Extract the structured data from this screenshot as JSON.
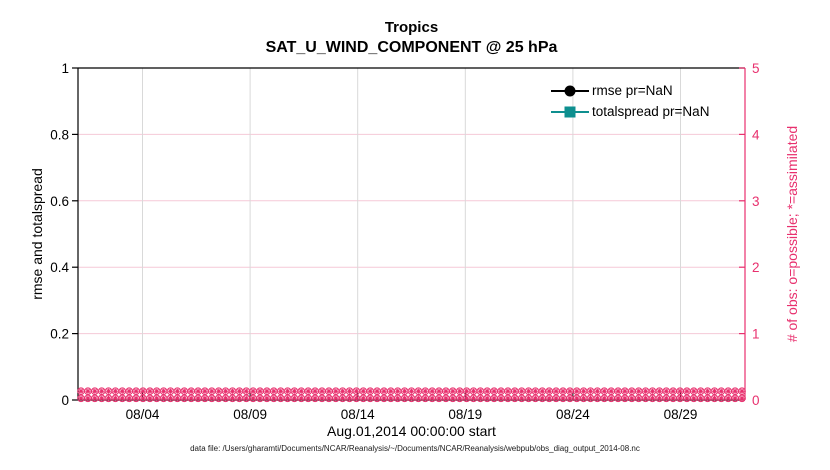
{
  "header": {
    "title": "Tropics",
    "subtitle": "SAT_U_WIND_COMPONENT @ 25 hPa"
  },
  "footer": {
    "data_file_note": "data file: /Users/gharamti/Documents/NCAR/Reanalysis/~/Documents/NCAR/Reanalysis/webpub/obs_diag_output_2014-08.nc"
  },
  "chart_data": {
    "type": "line",
    "title": "Tropics",
    "subtitle": "SAT_U_WIND_COMPONENT @ 25 hPa",
    "xlabel": "Aug.01,2014 00:00:00 start",
    "ylabel_left": "rmse and totalspread",
    "ylabel_right": "# of obs: o=possible; *=assimilated",
    "x_range": [
      "08/01",
      "09/01"
    ],
    "x_days_total": 31,
    "xtick_days": [
      4,
      9,
      14,
      19,
      24,
      29
    ],
    "xtick_labels": [
      "08/04",
      "08/09",
      "08/14",
      "08/19",
      "08/24",
      "08/29"
    ],
    "ylim_left": [
      0,
      1
    ],
    "yticks_left": [
      0,
      0.2,
      0.4,
      0.6,
      0.8,
      1
    ],
    "yticks_left_labels": [
      "0",
      "0.2",
      "0.4",
      "0.6",
      "0.8",
      "1"
    ],
    "ylim_right": [
      0,
      5
    ],
    "yticks_right": [
      0,
      1,
      2,
      3,
      4,
      5
    ],
    "yticks_right_labels": [
      "0",
      "1",
      "2",
      "3",
      "4",
      "5"
    ],
    "grid": true,
    "series": [
      {
        "name": "rmse pr=NaN",
        "axis": "left",
        "marker": "circle",
        "color": "#000000",
        "values": null
      },
      {
        "name": "totalspread pr=NaN",
        "axis": "left",
        "marker": "square",
        "color": "#0e8f8f",
        "values": null
      }
    ],
    "obs_counts": {
      "axis": "right",
      "possible_marker": "o",
      "assimilated_marker": "*",
      "possible_value": 0,
      "assimilated_value": 0,
      "marker_rows": 2,
      "markers_per_row": 97
    },
    "legend": {
      "position": "top-right",
      "items": [
        {
          "label": "rmse pr=NaN",
          "color": "#000000",
          "marker": "circle"
        },
        {
          "label": "totalspread pr=NaN",
          "color": "#0e8f8f",
          "marker": "square"
        }
      ]
    },
    "colors": {
      "axis_left": "#000000",
      "axis_right": "#e8306e",
      "obs_markers": "#e8306e",
      "grid_vertical": "#d9d9d9",
      "grid_horizontal": "#f5c9d7",
      "background": "#ffffff"
    }
  }
}
